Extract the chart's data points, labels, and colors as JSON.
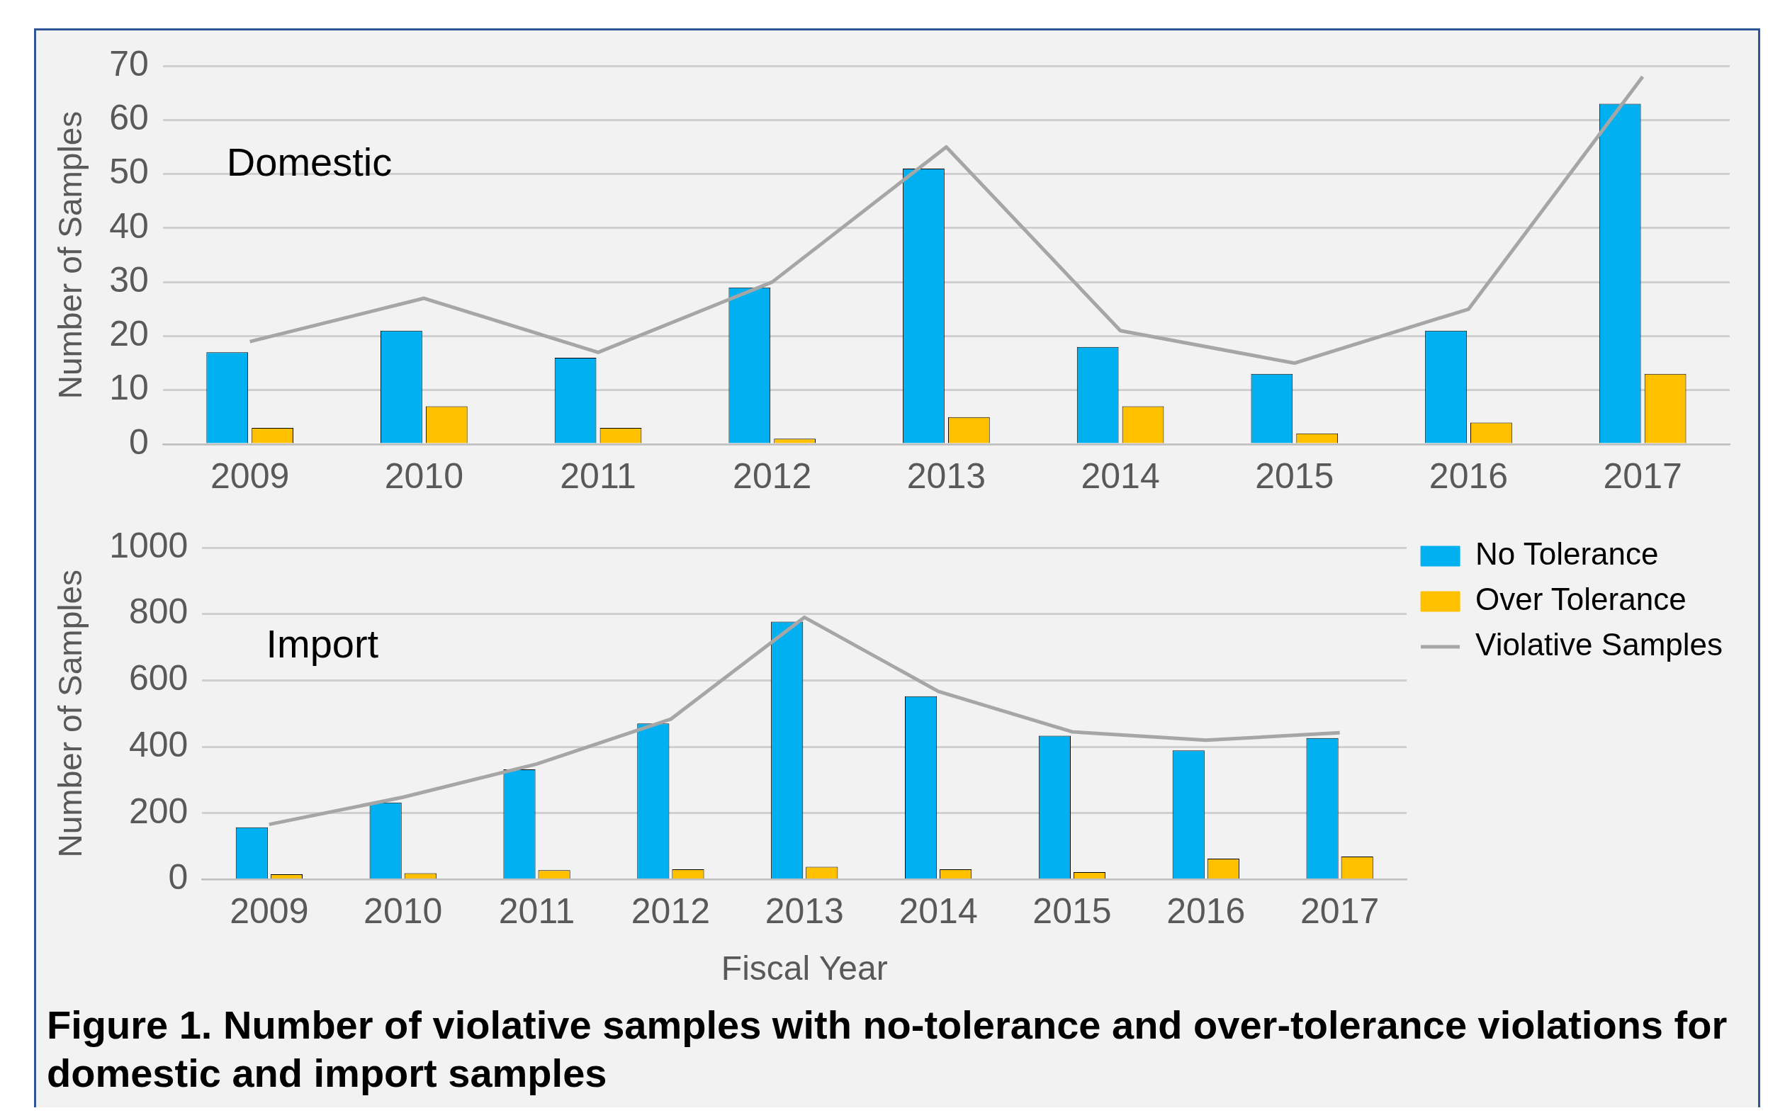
{
  "chart_data": [
    {
      "type": "bar",
      "ylabel": "Number of Samples",
      "categories": [
        "2009",
        "2010",
        "2011",
        "2012",
        "2013",
        "2014",
        "2015",
        "2016",
        "2017"
      ],
      "series": [
        {
          "color": "#00b0f0",
          "values": [
            17,
            21,
            16,
            29,
            51,
            18,
            13,
            21,
            63
          ]
        },
        {
          "color": "#ffc000",
          "values": [
            3,
            7,
            3,
            1,
            5,
            7,
            2,
            4,
            13
          ]
        },
        {
          "type": "line",
          "color": "#a6a6a6",
          "values": [
            19,
            27,
            17,
            30,
            55,
            21,
            15,
            25,
            68
          ]
        }
      ],
      "ylim": [
        0,
        70
      ],
      "yticks": [
        0,
        10,
        20,
        30,
        40,
        50,
        60,
        70
      ],
      "grid": "y",
      "legend": false,
      "marker": "none",
      "annotations": [
        "Domestic"
      ]
    },
    {
      "type": "bar",
      "xlabel": "Fiscal Year",
      "ylabel": "Number of Samples",
      "categories": [
        "2009",
        "2010",
        "2011",
        "2012",
        "2013",
        "2014",
        "2015",
        "2016",
        "2017"
      ],
      "series": [
        {
          "name": "No Tolerance",
          "color": "#00b0f0",
          "values": [
            157,
            232,
            332,
            470,
            777,
            552,
            433,
            389,
            426
          ]
        },
        {
          "name": "Over Tolerance",
          "color": "#ffc000",
          "values": [
            16,
            19,
            28,
            31,
            38,
            31,
            22,
            63,
            69
          ]
        },
        {
          "name": "Violative Samples",
          "type": "line",
          "color": "#a6a6a6",
          "values": [
            166,
            248,
            348,
            483,
            790,
            567,
            445,
            420,
            442
          ]
        }
      ],
      "ylim": [
        0,
        1000
      ],
      "yticks": [
        0,
        200,
        400,
        600,
        800,
        1000
      ],
      "grid": "y",
      "legend": "top right",
      "marker": "none",
      "annotations": [
        "Import",
        "Figure 1. Number of violative samples with no-tolerance and over-tolerance violations for domestic and import samples"
      ]
    }
  ]
}
